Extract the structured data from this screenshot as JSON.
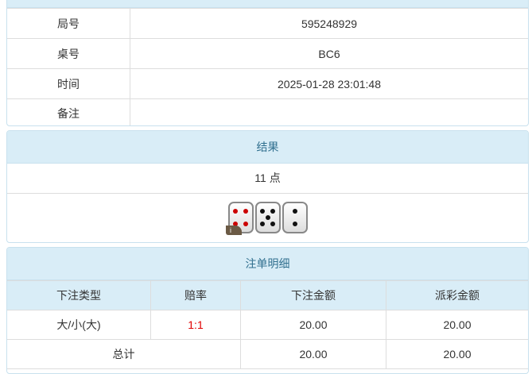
{
  "info": [
    {
      "label": "局号",
      "value": "595248929"
    },
    {
      "label": "桌号",
      "value": "BC6"
    },
    {
      "label": "时间",
      "value": "2025-01-28 23:01:48"
    },
    {
      "label": "备注",
      "value": ""
    }
  ],
  "result": {
    "title": "结果",
    "points": "11 点",
    "dice": [
      4,
      5,
      2
    ],
    "info_badge": "i"
  },
  "bets": {
    "title": "注单明细",
    "headers": [
      "下注类型",
      "赔率",
      "下注金额",
      "派彩金额"
    ],
    "rows": [
      {
        "type": "大/小(大)",
        "odds": "1:1",
        "amount": "20.00",
        "payout": "20.00"
      }
    ],
    "total": {
      "label": "总计",
      "amount": "20.00",
      "payout": "20.00"
    },
    "odds_color": "#e00000"
  }
}
